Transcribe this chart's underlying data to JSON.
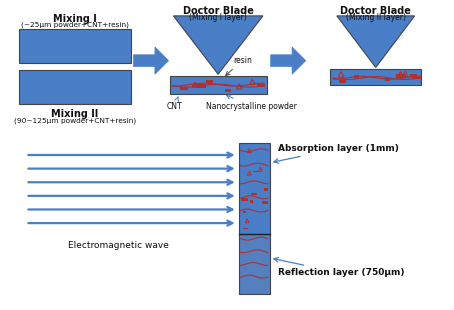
{
  "blue": "#4a7ec7",
  "blue_dark": "#3a6ab5",
  "red": "#b03030",
  "arr": "#4a7ec7",
  "tc": "#111111",
  "mixing1_title": "Mixing I",
  "mixing1_sub": "(~25μm powder+CNT+resin)",
  "mixing2_title": "Mixing II",
  "mixing2_sub": "(90~125μm powder+CNT+resin)",
  "doctor1_title": "Doctor Blade",
  "doctor1_sub": "(Mixing I layer)",
  "doctor2_title": "Doctor Blade",
  "doctor2_sub": "(Mixing II layer)",
  "resin_label": "resin",
  "cnt_label": "CNT",
  "nano_label": "Nanocrystalline powder",
  "absorption_label": "Absorption layer (1mm)",
  "reflection_label": "Reflection layer (750μm)",
  "em_label": "Electromagnetic wave"
}
